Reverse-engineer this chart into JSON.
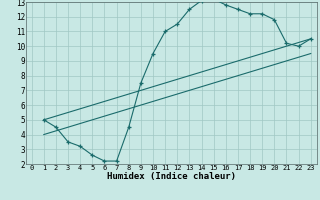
{
  "xlabel": "Humidex (Indice chaleur)",
  "bg_color": "#c8e8e4",
  "grid_color": "#a0c8c4",
  "line_color": "#1a6b6b",
  "xlim": [
    -0.5,
    23.5
  ],
  "ylim": [
    2,
    13
  ],
  "xticks": [
    0,
    1,
    2,
    3,
    4,
    5,
    6,
    7,
    8,
    9,
    10,
    11,
    12,
    13,
    14,
    15,
    16,
    17,
    18,
    19,
    20,
    21,
    22,
    23
  ],
  "yticks": [
    2,
    3,
    4,
    5,
    6,
    7,
    8,
    9,
    10,
    11,
    12,
    13
  ],
  "curve1_x": [
    1,
    2,
    3,
    4,
    5,
    6,
    7,
    8,
    9,
    10,
    11,
    12,
    13,
    14,
    15,
    16,
    17,
    18,
    19,
    20,
    21,
    22,
    23
  ],
  "curve1_y": [
    5.0,
    4.5,
    3.5,
    3.2,
    2.6,
    2.2,
    2.2,
    4.5,
    7.5,
    9.5,
    11.0,
    11.5,
    12.5,
    13.1,
    13.2,
    12.8,
    12.5,
    12.2,
    12.2,
    11.8,
    10.2,
    10.0,
    10.5
  ],
  "line2_x": [
    1,
    23
  ],
  "line2_y": [
    5.0,
    10.5
  ],
  "line3_x": [
    1,
    23
  ],
  "line3_y": [
    4.0,
    9.5
  ]
}
